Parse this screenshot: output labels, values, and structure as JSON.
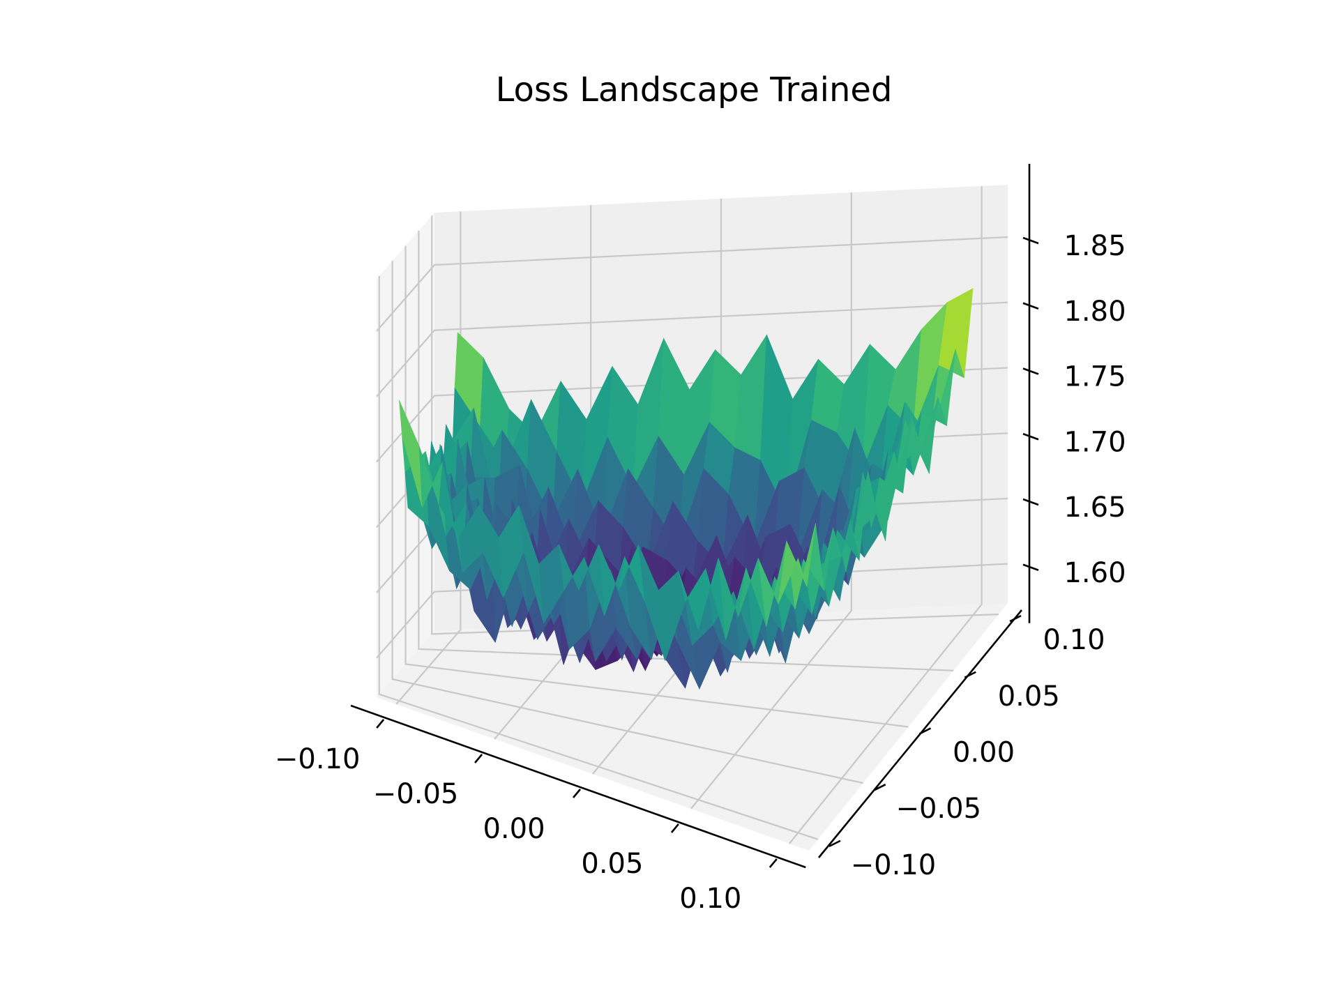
{
  "chart_data": {
    "type": "surface",
    "title": "Loss Landscape Trained",
    "xlabel": "",
    "ylabel": "",
    "zlabel": "",
    "xlim": [
      -0.11,
      0.11
    ],
    "ylim": [
      -0.11,
      0.11
    ],
    "zlim": [
      1.57,
      1.89
    ],
    "x_ticks": [
      -0.1,
      -0.05,
      0.0,
      0.05,
      0.1
    ],
    "x_tick_labels": [
      "−0.10",
      "−0.05",
      "0.00",
      "0.05",
      "0.10"
    ],
    "y_ticks": [
      -0.1,
      -0.05,
      0.0,
      0.05,
      0.1
    ],
    "y_tick_labels": [
      "−0.10",
      "−0.05",
      "0.00",
      "0.05",
      "0.10"
    ],
    "z_ticks": [
      1.6,
      1.65,
      1.7,
      1.75,
      1.8,
      1.85
    ],
    "z_tick_labels": [
      "1.60",
      "1.65",
      "1.70",
      "1.75",
      "1.80",
      "1.85"
    ],
    "grid": true,
    "colormap": "viridis",
    "grid_points": 21,
    "z_values": [
      [
        1.8,
        1.77,
        1.74,
        1.71,
        1.73,
        1.71,
        1.74,
        1.72,
        1.7,
        1.73,
        1.71,
        1.74,
        1.72,
        1.7,
        1.73,
        1.71,
        1.74,
        1.72,
        1.7,
        1.76,
        1.8
      ],
      [
        1.77,
        1.72,
        1.76,
        1.7,
        1.68,
        1.72,
        1.69,
        1.75,
        1.7,
        1.66,
        1.72,
        1.69,
        1.74,
        1.7,
        1.67,
        1.73,
        1.7,
        1.75,
        1.69,
        1.73,
        1.78
      ],
      [
        1.73,
        1.76,
        1.7,
        1.67,
        1.71,
        1.65,
        1.7,
        1.66,
        1.72,
        1.68,
        1.65,
        1.7,
        1.66,
        1.71,
        1.67,
        1.64,
        1.7,
        1.67,
        1.73,
        1.7,
        1.74
      ],
      [
        1.71,
        1.68,
        1.73,
        1.66,
        1.64,
        1.69,
        1.63,
        1.68,
        1.64,
        1.67,
        1.7,
        1.64,
        1.68,
        1.63,
        1.69,
        1.66,
        1.71,
        1.65,
        1.7,
        1.75,
        1.72
      ],
      [
        1.74,
        1.7,
        1.66,
        1.7,
        1.62,
        1.66,
        1.68,
        1.62,
        1.66,
        1.63,
        1.68,
        1.66,
        1.62,
        1.67,
        1.64,
        1.68,
        1.63,
        1.69,
        1.66,
        1.71,
        1.76
      ],
      [
        1.72,
        1.67,
        1.71,
        1.64,
        1.68,
        1.63,
        1.66,
        1.64,
        1.61,
        1.65,
        1.62,
        1.64,
        1.66,
        1.61,
        1.65,
        1.62,
        1.67,
        1.64,
        1.7,
        1.67,
        1.73
      ],
      [
        1.75,
        1.71,
        1.66,
        1.69,
        1.63,
        1.67,
        1.62,
        1.65,
        1.63,
        1.66,
        1.61,
        1.63,
        1.6,
        1.64,
        1.62,
        1.66,
        1.63,
        1.68,
        1.65,
        1.72,
        1.77
      ],
      [
        1.71,
        1.66,
        1.7,
        1.65,
        1.66,
        1.61,
        1.65,
        1.62,
        1.64,
        1.6,
        1.63,
        1.61,
        1.65,
        1.62,
        1.6,
        1.64,
        1.61,
        1.66,
        1.7,
        1.68,
        1.74
      ],
      [
        1.73,
        1.69,
        1.64,
        1.68,
        1.62,
        1.66,
        1.63,
        1.6,
        1.62,
        1.65,
        1.61,
        1.63,
        1.6,
        1.63,
        1.66,
        1.62,
        1.65,
        1.63,
        1.67,
        1.72,
        1.79
      ],
      [
        1.7,
        1.72,
        1.66,
        1.63,
        1.67,
        1.62,
        1.64,
        1.61,
        1.63,
        1.6,
        1.62,
        1.6,
        1.64,
        1.61,
        1.63,
        1.6,
        1.64,
        1.68,
        1.64,
        1.69,
        1.75
      ],
      [
        1.74,
        1.68,
        1.71,
        1.66,
        1.63,
        1.65,
        1.61,
        1.63,
        1.6,
        1.62,
        1.6,
        1.62,
        1.6,
        1.63,
        1.61,
        1.64,
        1.62,
        1.65,
        1.7,
        1.73,
        1.78
      ],
      [
        1.71,
        1.73,
        1.67,
        1.64,
        1.68,
        1.63,
        1.66,
        1.62,
        1.64,
        1.61,
        1.63,
        1.61,
        1.62,
        1.6,
        1.64,
        1.62,
        1.66,
        1.63,
        1.68,
        1.71,
        1.76
      ],
      [
        1.75,
        1.7,
        1.65,
        1.69,
        1.64,
        1.67,
        1.63,
        1.65,
        1.61,
        1.64,
        1.62,
        1.6,
        1.63,
        1.61,
        1.62,
        1.65,
        1.61,
        1.67,
        1.64,
        1.7,
        1.79
      ],
      [
        1.72,
        1.66,
        1.71,
        1.66,
        1.62,
        1.65,
        1.68,
        1.63,
        1.66,
        1.62,
        1.65,
        1.63,
        1.61,
        1.64,
        1.6,
        1.63,
        1.66,
        1.62,
        1.69,
        1.66,
        1.74
      ],
      [
        1.74,
        1.71,
        1.67,
        1.63,
        1.68,
        1.64,
        1.62,
        1.67,
        1.63,
        1.66,
        1.62,
        1.66,
        1.63,
        1.62,
        1.65,
        1.61,
        1.67,
        1.64,
        1.7,
        1.73,
        1.77
      ],
      [
        1.7,
        1.74,
        1.69,
        1.67,
        1.64,
        1.69,
        1.65,
        1.63,
        1.68,
        1.64,
        1.67,
        1.63,
        1.66,
        1.64,
        1.62,
        1.66,
        1.63,
        1.69,
        1.66,
        1.72,
        1.75
      ],
      [
        1.76,
        1.69,
        1.72,
        1.66,
        1.7,
        1.65,
        1.68,
        1.66,
        1.63,
        1.67,
        1.64,
        1.68,
        1.65,
        1.62,
        1.66,
        1.64,
        1.7,
        1.67,
        1.73,
        1.69,
        1.78
      ],
      [
        1.72,
        1.75,
        1.68,
        1.71,
        1.66,
        1.69,
        1.64,
        1.7,
        1.66,
        1.64,
        1.69,
        1.65,
        1.67,
        1.69,
        1.64,
        1.68,
        1.65,
        1.71,
        1.68,
        1.74,
        1.76
      ],
      [
        1.77,
        1.71,
        1.74,
        1.69,
        1.72,
        1.67,
        1.71,
        1.67,
        1.72,
        1.68,
        1.66,
        1.7,
        1.73,
        1.67,
        1.71,
        1.69,
        1.73,
        1.7,
        1.75,
        1.72,
        1.79
      ],
      [
        1.74,
        1.78,
        1.72,
        1.75,
        1.7,
        1.73,
        1.69,
        1.74,
        1.7,
        1.72,
        1.76,
        1.71,
        1.74,
        1.7,
        1.73,
        1.76,
        1.71,
        1.75,
        1.72,
        1.77,
        1.81
      ],
      [
        1.78,
        1.75,
        1.79,
        1.73,
        1.77,
        1.74,
        1.76,
        1.72,
        1.78,
        1.74,
        1.71,
        1.77,
        1.73,
        1.78,
        1.75,
        1.72,
        1.77,
        1.74,
        1.79,
        1.76,
        1.82
      ]
    ]
  }
}
